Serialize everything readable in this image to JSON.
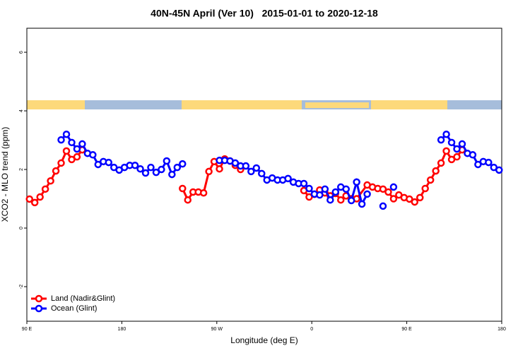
{
  "chart_data": {
    "type": "line",
    "title": "40N-45N April (Ver 10)   2015-01-01 to 2020-12-18",
    "x_label": "Longitude (deg E)",
    "y_label": "XCO2 - MLO trend (ppm)",
    "xlim": [
      90,
      540
    ],
    "xticks": [
      {
        "value": 90,
        "label": "90 E"
      },
      180,
      {
        "value": 270,
        "label": "90 W"
      },
      {
        "value": 360,
        "label": "0"
      },
      {
        "value": 450,
        "label": "90 E"
      },
      {
        "value": 540,
        "label": "180"
      }
    ],
    "ylim": [
      -3.18,
      6.82
    ],
    "yticks": [
      -2,
      0,
      2,
      4,
      6
    ],
    "legend": "bottom-left",
    "series": [
      {
        "name": "Land (Nadir&Glint)",
        "color": "#ff0000",
        "x": [
          92.5,
          97.5,
          102.5,
          107.5,
          112.5,
          117.5,
          122.5,
          127.5,
          132.5,
          137.5,
          142.5,
          null,
          237.5,
          242.5,
          247.5,
          252.5,
          257.5,
          262.5,
          267.5,
          272.5,
          277.5,
          282.5,
          287.5,
          292.5,
          null,
          352.5,
          357.5,
          362.5,
          367.5,
          372.5,
          377.5,
          382.5,
          387.5,
          392.5,
          397.5,
          402.5,
          412.5,
          417.5,
          422.5,
          427.5,
          432.5,
          437.5,
          442.5,
          447.5,
          452.5,
          457.5,
          462.5,
          467.5,
          472.5,
          477.5,
          482.5,
          487.5,
          492.5,
          497.5,
          502.5
        ],
        "values": [
          0.99,
          0.87,
          1.06,
          1.33,
          1.61,
          1.95,
          2.22,
          2.63,
          2.34,
          2.43,
          2.67,
          null,
          1.35,
          0.96,
          1.23,
          1.23,
          1.2,
          1.93,
          2.27,
          2.02,
          2.36,
          2.29,
          2.14,
          2.0,
          null,
          1.28,
          1.06,
          1.15,
          1.3,
          1.2,
          1.1,
          1.18,
          0.96,
          1.1,
          1.0,
          1.0,
          1.47,
          1.4,
          1.35,
          1.33,
          1.23,
          1.0,
          1.13,
          1.04,
          0.99,
          0.89,
          1.04,
          1.35,
          1.64,
          1.95,
          2.22,
          2.63,
          2.34,
          2.43,
          2.67
        ]
      },
      {
        "name": "Ocean (Glint)",
        "color": "#0000ff",
        "x": [
          122.5,
          127.5,
          132.5,
          137.5,
          142.5,
          147.5,
          152.5,
          157.5,
          162.5,
          167.5,
          172.5,
          177.5,
          182.5,
          187.5,
          192.5,
          197.5,
          202.5,
          207.5,
          212.5,
          217.5,
          222.5,
          227.5,
          232.5,
          237.5,
          null,
          272.5,
          277.5,
          282.5,
          287.5,
          292.5,
          297.5,
          302.5,
          307.5,
          312.5,
          317.5,
          322.5,
          327.5,
          332.5,
          337.5,
          342.5,
          347.5,
          352.5,
          357.5,
          362.5,
          367.5,
          372.5,
          377.5,
          382.5,
          387.5,
          392.5,
          397.5,
          402.5,
          407.5,
          412.5,
          null,
          427.5,
          null,
          437.5,
          null,
          482.5,
          487.5,
          492.5,
          497.5,
          502.5,
          507.5,
          512.5,
          517.5,
          522.5,
          527.5,
          532.5,
          537.5
        ],
        "values": [
          3.01,
          3.2,
          2.92,
          2.7,
          2.87,
          2.55,
          2.5,
          2.17,
          2.27,
          2.24,
          2.07,
          1.98,
          2.07,
          2.14,
          2.14,
          2.02,
          1.88,
          2.07,
          1.9,
          2.0,
          2.29,
          1.83,
          2.07,
          2.19,
          null,
          2.31,
          2.31,
          2.29,
          2.22,
          2.12,
          2.12,
          1.93,
          2.05,
          1.86,
          1.64,
          1.71,
          1.64,
          1.64,
          1.69,
          1.57,
          1.52,
          1.52,
          1.35,
          1.16,
          1.13,
          1.33,
          0.96,
          1.23,
          1.4,
          1.33,
          0.94,
          1.57,
          0.82,
          1.16,
          null,
          0.75,
          null,
          1.4,
          null,
          3.01,
          3.2,
          2.92,
          2.7,
          2.87,
          2.55,
          2.5,
          2.17,
          2.27,
          2.24,
          2.07,
          1.98
        ]
      }
    ]
  }
}
